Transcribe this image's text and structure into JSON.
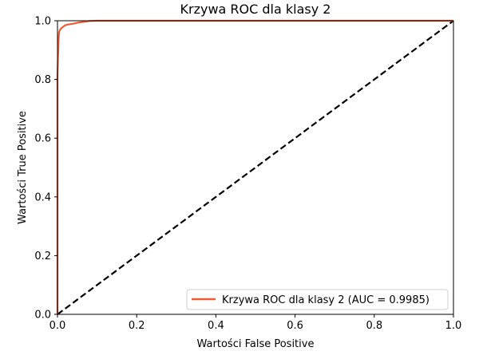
{
  "chart_data": {
    "type": "line",
    "title": "Krzywa ROC dla klasy 2",
    "xlabel": "Wartości False Positive",
    "ylabel": "Wartości True Positive",
    "xlim": [
      0.0,
      1.0
    ],
    "ylim": [
      0.0,
      1.0
    ],
    "xticks": [
      0.0,
      0.2,
      0.4,
      0.6,
      0.8,
      1.0
    ],
    "yticks": [
      0.0,
      0.2,
      0.4,
      0.6,
      0.8,
      1.0
    ],
    "xtick_labels": [
      "0.0",
      "0.2",
      "0.4",
      "0.6",
      "0.8",
      "1.0"
    ],
    "ytick_labels": [
      "0.0",
      "0.2",
      "0.4",
      "0.6",
      "0.8",
      "1.0"
    ],
    "grid": false,
    "legend_position": "lower-right",
    "series": [
      {
        "name": "Krzywa ROC dla klasy 2 (AUC = 0.9985)",
        "color": "#f05a32",
        "style": "solid",
        "x": [
          0.0,
          0.0,
          0.001,
          0.002,
          0.003,
          0.004,
          0.005,
          0.007,
          0.01,
          0.015,
          0.02,
          0.03,
          0.04,
          0.05,
          0.06,
          0.07,
          0.08,
          0.1,
          1.0
        ],
        "y": [
          0.0,
          0.81,
          0.86,
          0.9,
          0.94,
          0.96,
          0.965,
          0.97,
          0.975,
          0.98,
          0.985,
          0.988,
          0.99,
          0.993,
          0.995,
          0.997,
          0.999,
          1.0,
          1.0
        ]
      },
      {
        "name": "",
        "color": "#000000",
        "style": "dashed",
        "x": [
          0.0,
          1.0
        ],
        "y": [
          0.0,
          1.0
        ]
      }
    ]
  }
}
